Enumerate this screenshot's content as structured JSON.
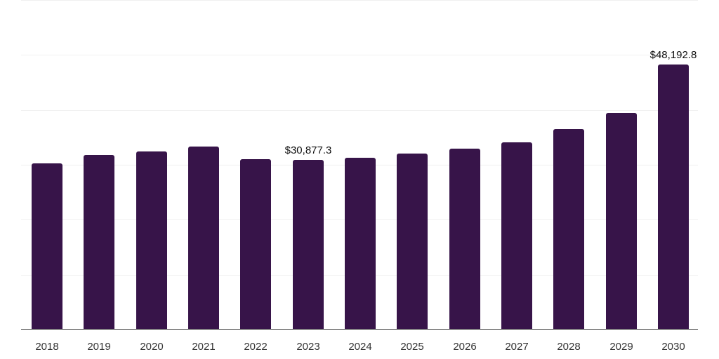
{
  "chart_data": {
    "type": "bar",
    "title": "",
    "xlabel": "",
    "ylabel": "",
    "categories": [
      "2018",
      "2019",
      "2020",
      "2021",
      "2022",
      "2023",
      "2024",
      "2025",
      "2026",
      "2027",
      "2028",
      "2029",
      "2030"
    ],
    "values": [
      30290,
      31820,
      32460,
      33360,
      31060,
      30877.3,
      31310,
      32080,
      32970,
      34120,
      36550,
      39490,
      48192.8
    ],
    "data_labels": [
      {
        "category": "2023",
        "text": "$30,877.3"
      },
      {
        "category": "2030",
        "text": "$48,192.8"
      }
    ],
    "ylim": [
      0,
      60000
    ],
    "gridlines": [
      0,
      10000,
      20000,
      30000,
      40000,
      50000,
      60000
    ],
    "grid": true,
    "legend": null,
    "bar_color": "#371449"
  }
}
